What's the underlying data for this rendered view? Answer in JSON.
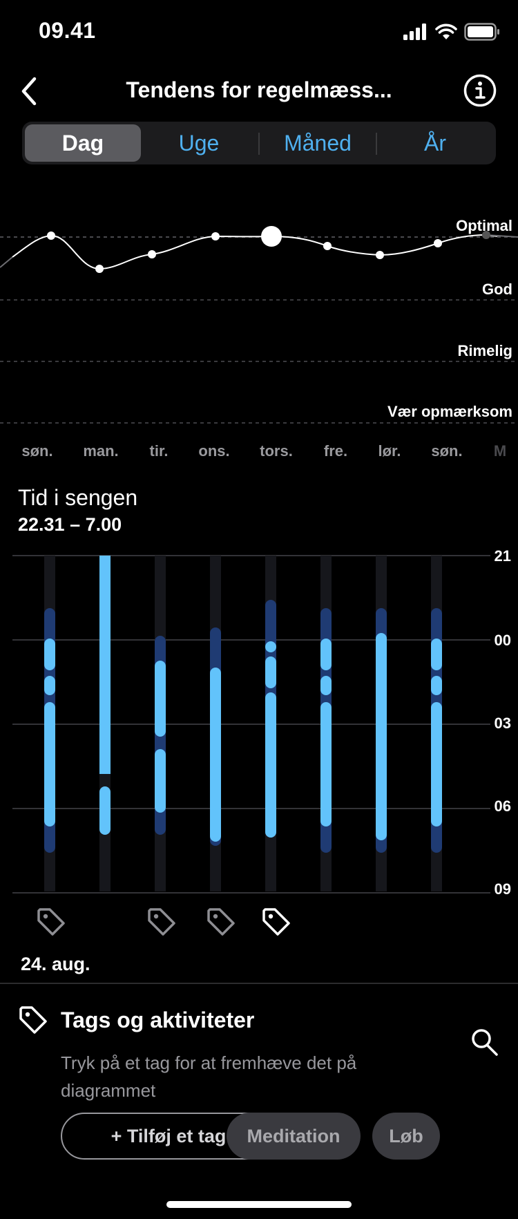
{
  "status_bar": {
    "time": "09.41"
  },
  "header": {
    "title": "Tendens for regelmæss..."
  },
  "segmented": {
    "options": [
      {
        "label": "Dag",
        "selected": true
      },
      {
        "label": "Uge",
        "selected": false
      },
      {
        "label": "Måned",
        "selected": false
      },
      {
        "label": "År",
        "selected": false
      }
    ]
  },
  "regularity_chart": {
    "levels": [
      "Optimal",
      "God",
      "Rimelig",
      "Vær opmærksom"
    ],
    "days": [
      "søn.",
      "man.",
      "tir.",
      "ons.",
      "tors.",
      "fre.",
      "lør.",
      "søn.",
      "M"
    ],
    "selected_day_index": 4
  },
  "time_in_bed": {
    "title": "Tid i sengen",
    "range": "22.31 – 7.00",
    "hour_labels": [
      "21",
      "00",
      "03",
      "06",
      "09"
    ],
    "date": "24. aug."
  },
  "tags_section": {
    "title": "Tags og aktiviteter",
    "description": "Tryk på et tag for at fremhæve det på diagrammet",
    "chips": {
      "add": "+ Tilføj et tag",
      "meditation": "Meditation",
      "run": "Løb"
    }
  },
  "colors": {
    "accent": "#4fb0ef",
    "sleep_light": "#62c3fb",
    "sleep_dark": "#1f3b73",
    "column_bg": "#16171c"
  }
}
